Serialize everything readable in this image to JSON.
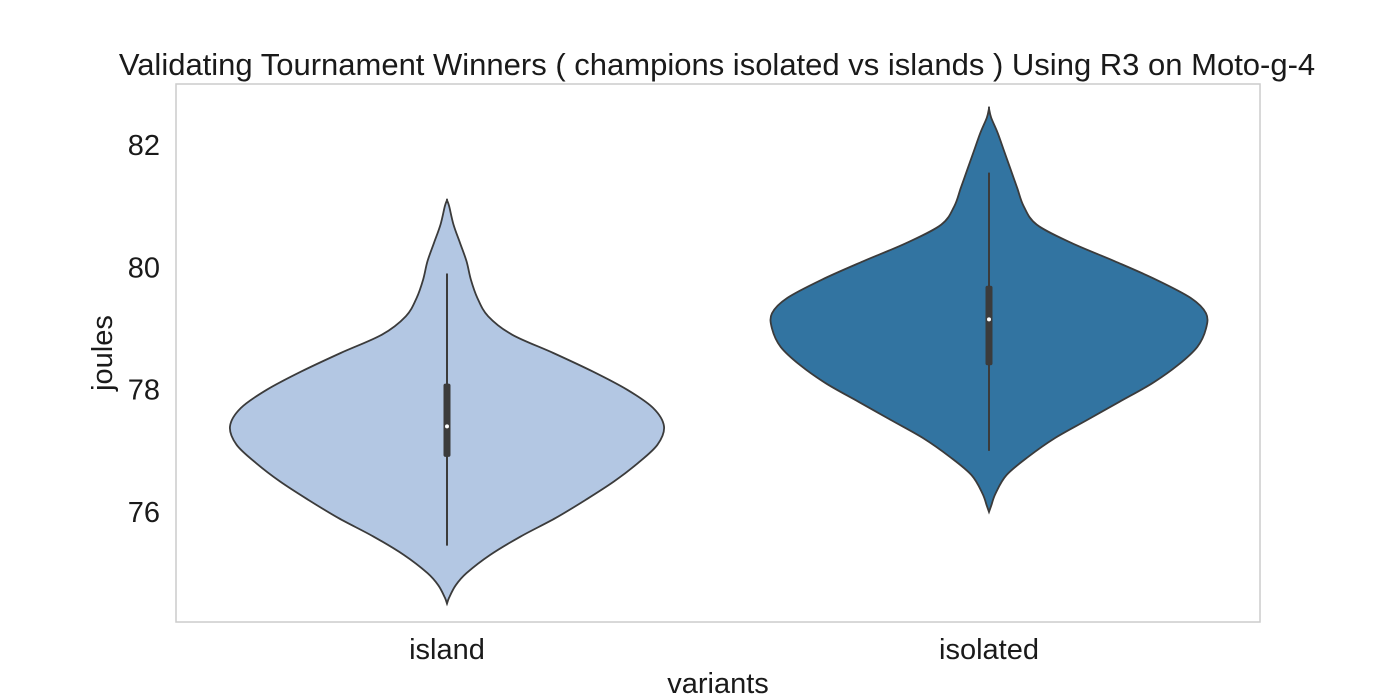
{
  "chart_data": {
    "type": "violin",
    "title": "Validating Tournament Winners ( champions isolated vs islands ) Using R3 on Moto-g-4",
    "xlabel": "variants",
    "ylabel": "joules",
    "categories": [
      "island",
      "isolated"
    ],
    "ylim": [
      74.2,
      83
    ],
    "yticks": [
      76,
      78,
      80,
      82
    ],
    "grid": false,
    "series": [
      {
        "category": "island",
        "color": "#b3c7e3",
        "min": 75.45,
        "q1": 76.9,
        "median": 77.4,
        "q3": 78.1,
        "max": 79.9,
        "density_y": [
          74.5,
          74.6,
          74.8,
          75.0,
          75.3,
          75.6,
          75.9,
          76.2,
          76.5,
          76.8,
          77.1,
          77.4,
          77.7,
          78.0,
          78.3,
          78.6,
          78.9,
          79.2,
          79.5,
          79.8,
          80.1,
          80.4,
          80.7,
          81.0,
          81.1
        ],
        "density_halfwidth": [
          0.0,
          0.01,
          0.04,
          0.09,
          0.2,
          0.34,
          0.5,
          0.64,
          0.77,
          0.88,
          0.97,
          1.0,
          0.95,
          0.83,
          0.67,
          0.49,
          0.3,
          0.19,
          0.14,
          0.11,
          0.09,
          0.06,
          0.03,
          0.01,
          0.0
        ]
      },
      {
        "category": "isolated",
        "color": "#3274a1",
        "min": 77.0,
        "q1": 78.4,
        "median": 79.15,
        "q3": 79.7,
        "max": 81.55,
        "density_y": [
          76.0,
          76.1,
          76.3,
          76.6,
          76.9,
          77.2,
          77.5,
          77.8,
          78.1,
          78.4,
          78.7,
          79.0,
          79.25,
          79.5,
          79.8,
          80.1,
          80.4,
          80.7,
          81.0,
          81.3,
          81.6,
          81.9,
          82.2,
          82.45,
          82.6
        ],
        "density_halfwidth": [
          0.0,
          0.01,
          0.03,
          0.08,
          0.18,
          0.3,
          0.45,
          0.6,
          0.75,
          0.87,
          0.96,
          1.0,
          1.0,
          0.93,
          0.77,
          0.58,
          0.38,
          0.22,
          0.16,
          0.13,
          0.1,
          0.07,
          0.04,
          0.01,
          0.0
        ]
      }
    ]
  }
}
